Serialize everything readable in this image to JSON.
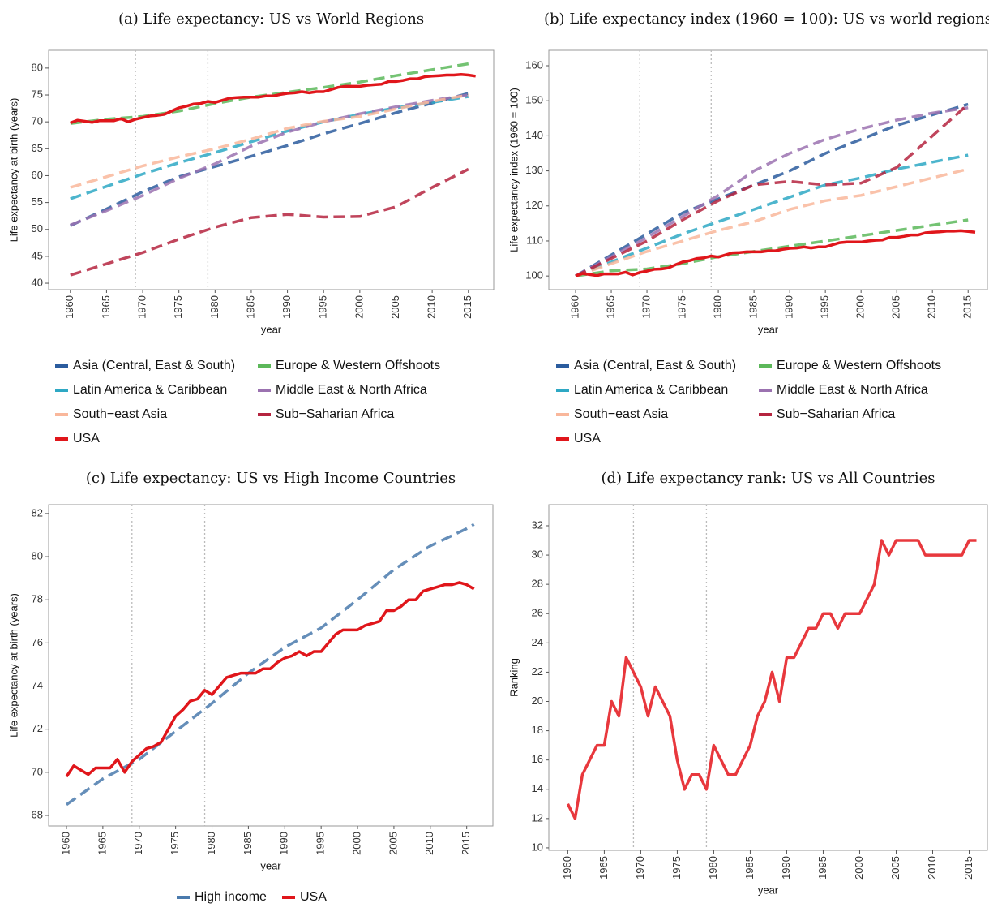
{
  "chart_data": [
    {
      "type": "line",
      "title": "(a) Life expectancy: US vs World Regions",
      "xlabel": "year",
      "ylabel": "Life expectancy at birth (years)",
      "xlim": [
        1957,
        2018.5
      ],
      "xticks": [
        1960,
        1965,
        1970,
        1975,
        1980,
        1985,
        1990,
        1995,
        2000,
        2005,
        2010,
        2015
      ],
      "ylim": [
        38.8,
        83.3
      ],
      "yticks": [
        40,
        45,
        50,
        55,
        60,
        65,
        70,
        75,
        80
      ],
      "vlines": [
        1969,
        1979
      ],
      "legend": "bottom",
      "x": [
        1960,
        1961,
        1962,
        1963,
        1964,
        1965,
        1966,
        1967,
        1968,
        1969,
        1970,
        1971,
        1972,
        1973,
        1974,
        1975,
        1976,
        1977,
        1978,
        1979,
        1980,
        1981,
        1982,
        1983,
        1984,
        1985,
        1986,
        1987,
        1988,
        1989,
        1990,
        1991,
        1992,
        1993,
        1994,
        1995,
        1996,
        1997,
        1998,
        1999,
        2000,
        2001,
        2002,
        2003,
        2004,
        2005,
        2006,
        2007,
        2008,
        2009,
        2010,
        2011,
        2012,
        2013,
        2014,
        2015,
        2016
      ],
      "series": [
        {
          "name": "Asia (Central, East & South)",
          "color": "#2b5c9e",
          "linestyle": "dashed",
          "x": [
            1960,
            1965,
            1970,
            1975,
            1980,
            1985,
            1990,
            1995,
            2000,
            2005,
            2010,
            2015
          ],
          "values": [
            50.7,
            53.8,
            57.0,
            59.8,
            61.7,
            63.6,
            65.6,
            67.8,
            69.7,
            71.7,
            73.5,
            75.3
          ]
        },
        {
          "name": "Europe & Western Offshoots",
          "color": "#5cb85a",
          "linestyle": "dashed",
          "x": [
            1960,
            1965,
            1970,
            1975,
            1980,
            1985,
            1990,
            1995,
            2000,
            2005,
            2010,
            2015
          ],
          "values": [
            69.7,
            70.5,
            71.0,
            72.0,
            73.4,
            74.6,
            75.5,
            76.4,
            77.4,
            78.6,
            79.7,
            80.8
          ]
        },
        {
          "name": "Latin America & Caribbean",
          "color": "#2ea8c4",
          "linestyle": "dashed",
          "x": [
            1960,
            1965,
            1970,
            1975,
            1980,
            1985,
            1990,
            1995,
            2000,
            2005,
            2010,
            2015
          ],
          "values": [
            55.7,
            58.0,
            60.3,
            62.4,
            64.3,
            66.3,
            68.3,
            70.0,
            71.4,
            72.6,
            73.6,
            74.7
          ]
        },
        {
          "name": "Middle East & North Africa",
          "color": "#9b72b0",
          "linestyle": "dashed",
          "x": [
            1960,
            1965,
            1970,
            1975,
            1980,
            1985,
            1990,
            1995,
            2000,
            2005,
            2010,
            2015
          ],
          "values": [
            50.8,
            53.5,
            56.3,
            59.5,
            62.2,
            65.5,
            68.1,
            70.0,
            71.5,
            72.8,
            74.0,
            75.0
          ]
        },
        {
          "name": "South−east Asia",
          "color": "#f9b79b",
          "linestyle": "dashed",
          "x": [
            1960,
            1965,
            1970,
            1975,
            1980,
            1985,
            1990,
            1995,
            2000,
            2005,
            2010,
            2015
          ],
          "values": [
            57.8,
            59.8,
            61.8,
            63.5,
            65.0,
            66.8,
            68.8,
            70.1,
            71.0,
            72.4,
            73.8,
            75.0
          ]
        },
        {
          "name": "Sub−Saharian Africa",
          "color": "#b5243f",
          "linestyle": "dashed",
          "x": [
            1960,
            1965,
            1970,
            1975,
            1980,
            1985,
            1990,
            1995,
            2000,
            2005,
            2010,
            2015
          ],
          "values": [
            41.5,
            43.6,
            45.7,
            48.2,
            50.4,
            52.2,
            52.8,
            52.3,
            52.4,
            54.2,
            57.8,
            61.2
          ]
        },
        {
          "name": "USA",
          "color": "#e0161b",
          "linestyle": "solid",
          "values": [
            69.8,
            70.3,
            70.1,
            69.9,
            70.2,
            70.2,
            70.2,
            70.6,
            70.0,
            70.5,
            70.8,
            71.1,
            71.2,
            71.4,
            72.0,
            72.6,
            72.9,
            73.3,
            73.4,
            73.8,
            73.6,
            74.0,
            74.4,
            74.5,
            74.6,
            74.6,
            74.6,
            74.8,
            74.8,
            75.1,
            75.3,
            75.4,
            75.6,
            75.4,
            75.6,
            75.6,
            76.0,
            76.4,
            76.6,
            76.6,
            76.6,
            76.8,
            76.9,
            77.0,
            77.5,
            77.5,
            77.7,
            78.0,
            78.0,
            78.4,
            78.5,
            78.6,
            78.7,
            78.7,
            78.8,
            78.7,
            78.5
          ]
        }
      ]
    },
    {
      "type": "line",
      "title": "(b) Life expectancy index (1960 = 100): US vs world regions",
      "xlabel": "year",
      "ylabel": "Life expectancy index (1960 = 100)",
      "xlim": [
        1956.25,
        2017.7
      ],
      "xticks": [
        1960,
        1965,
        1970,
        1975,
        1980,
        1985,
        1990,
        1995,
        2000,
        2005,
        2010,
        2015
      ],
      "ylim": [
        96.1,
        164.4
      ],
      "yticks": [
        100,
        110,
        120,
        130,
        140,
        150,
        160
      ],
      "vlines": [
        1969,
        1979
      ],
      "legend": "bottom",
      "x": [
        1960,
        1961,
        1962,
        1963,
        1964,
        1965,
        1966,
        1967,
        1968,
        1969,
        1970,
        1971,
        1972,
        1973,
        1974,
        1975,
        1976,
        1977,
        1978,
        1979,
        1980,
        1981,
        1982,
        1983,
        1984,
        1985,
        1986,
        1987,
        1988,
        1989,
        1990,
        1991,
        1992,
        1993,
        1994,
        1995,
        1996,
        1997,
        1998,
        1999,
        2000,
        2001,
        2002,
        2003,
        2004,
        2005,
        2006,
        2007,
        2008,
        2009,
        2010,
        2011,
        2012,
        2013,
        2014,
        2015,
        2016
      ],
      "series": [
        {
          "name": "Asia (Central, East & South)",
          "color": "#2b5c9e",
          "linestyle": "dashed",
          "x": [
            1960,
            1965,
            1970,
            1975,
            1980,
            1985,
            1990,
            1995,
            2000,
            2005,
            2010,
            2015
          ],
          "values": [
            100,
            106,
            112,
            118,
            122,
            126,
            130,
            135,
            139,
            143,
            146,
            149
          ]
        },
        {
          "name": "Europe & Western Offshoots",
          "color": "#5cb85a",
          "linestyle": "dashed",
          "x": [
            1960,
            1965,
            1970,
            1975,
            1980,
            1985,
            1990,
            1995,
            2000,
            2005,
            2010,
            2015
          ],
          "values": [
            100,
            101.5,
            102,
            103.5,
            105.5,
            107,
            108.5,
            110,
            111.5,
            113,
            114.5,
            116
          ]
        },
        {
          "name": "Latin America & Caribbean",
          "color": "#2ea8c4",
          "linestyle": "dashed",
          "x": [
            1960,
            1965,
            1970,
            1975,
            1980,
            1985,
            1990,
            1995,
            2000,
            2005,
            2010,
            2015
          ],
          "values": [
            100,
            104,
            108,
            112,
            115.5,
            119,
            122.5,
            126,
            128,
            130.5,
            132.5,
            134.5
          ]
        },
        {
          "name": "Middle East & North Africa",
          "color": "#9b72b0",
          "linestyle": "dashed",
          "x": [
            1960,
            1965,
            1970,
            1975,
            1980,
            1985,
            1990,
            1995,
            2000,
            2005,
            2010,
            2015
          ],
          "values": [
            100,
            105.5,
            111,
            117,
            123,
            130,
            135,
            139,
            142,
            144.5,
            146.5,
            148
          ]
        },
        {
          "name": "South−east Asia",
          "color": "#f9b79b",
          "linestyle": "dashed",
          "x": [
            1960,
            1965,
            1970,
            1975,
            1980,
            1985,
            1990,
            1995,
            2000,
            2005,
            2010,
            2015
          ],
          "values": [
            100,
            103.5,
            107,
            110,
            113,
            115.5,
            119,
            121.5,
            123,
            125.5,
            128,
            130.5
          ]
        },
        {
          "name": "Sub−Saharian Africa",
          "color": "#b5243f",
          "linestyle": "dashed",
          "x": [
            1960,
            1965,
            1970,
            1975,
            1980,
            1985,
            1990,
            1995,
            2000,
            2005,
            2010,
            2015
          ],
          "values": [
            100,
            105,
            110,
            116,
            121.5,
            126,
            127,
            126,
            126.5,
            131,
            140,
            149
          ]
        },
        {
          "name": "USA",
          "color": "#e0161b",
          "linestyle": "solid",
          "values": [
            100,
            100.7,
            100.4,
            100.1,
            100.6,
            100.6,
            100.6,
            101.1,
            100.3,
            101.0,
            101.4,
            101.9,
            102.0,
            102.3,
            103.2,
            104.0,
            104.4,
            105.0,
            105.2,
            105.7,
            105.4,
            106.0,
            106.6,
            106.7,
            106.9,
            106.9,
            106.9,
            107.2,
            107.2,
            107.6,
            107.9,
            108.0,
            108.3,
            108.0,
            108.3,
            108.3,
            108.9,
            109.5,
            109.7,
            109.7,
            109.7,
            110.0,
            110.2,
            110.3,
            111.0,
            111.0,
            111.3,
            111.7,
            111.7,
            112.3,
            112.5,
            112.6,
            112.8,
            112.8,
            112.9,
            112.7,
            112.5
          ]
        }
      ]
    },
    {
      "type": "line",
      "title": "(c) Life expectancy: US vs High Income Countries",
      "xlabel": "year",
      "ylabel": "Life expectancy at birth (years)",
      "xlim": [
        1957.55,
        2018.6
      ],
      "xticks": [
        1960,
        1965,
        1970,
        1975,
        1980,
        1985,
        1990,
        1995,
        2000,
        2005,
        2010,
        2015
      ],
      "ylim": [
        67.51,
        82.41
      ],
      "yticks": [
        68,
        70,
        72,
        74,
        76,
        78,
        80,
        82
      ],
      "vlines": [
        1969,
        1979
      ],
      "legend": "bottom",
      "x": [
        1960,
        1961,
        1962,
        1963,
        1964,
        1965,
        1966,
        1967,
        1968,
        1969,
        1970,
        1971,
        1972,
        1973,
        1974,
        1975,
        1976,
        1977,
        1978,
        1979,
        1980,
        1981,
        1982,
        1983,
        1984,
        1985,
        1986,
        1987,
        1988,
        1989,
        1990,
        1991,
        1992,
        1993,
        1994,
        1995,
        1996,
        1997,
        1998,
        1999,
        2000,
        2001,
        2002,
        2003,
        2004,
        2005,
        2006,
        2007,
        2008,
        2009,
        2010,
        2011,
        2012,
        2013,
        2014,
        2015,
        2016
      ],
      "series": [
        {
          "name": "High income",
          "color": "#4a7aad",
          "linestyle": "dashed",
          "x": [
            1960,
            1965,
            1970,
            1975,
            1980,
            1985,
            1990,
            1995,
            2000,
            2005,
            2010,
            2015,
            2016
          ],
          "values": [
            68.5,
            69.7,
            70.6,
            71.9,
            73.2,
            74.6,
            75.8,
            76.7,
            78.0,
            79.4,
            80.5,
            81.3,
            81.5
          ]
        },
        {
          "name": "USA",
          "color": "#e0161b",
          "linestyle": "solid",
          "values": [
            69.8,
            70.3,
            70.1,
            69.9,
            70.2,
            70.2,
            70.2,
            70.6,
            70.0,
            70.5,
            70.8,
            71.1,
            71.2,
            71.4,
            72.0,
            72.6,
            72.9,
            73.3,
            73.4,
            73.8,
            73.6,
            74.0,
            74.4,
            74.5,
            74.6,
            74.6,
            74.6,
            74.8,
            74.8,
            75.1,
            75.3,
            75.4,
            75.6,
            75.4,
            75.6,
            75.6,
            76.0,
            76.4,
            76.6,
            76.6,
            76.6,
            76.8,
            76.9,
            77.0,
            77.5,
            77.5,
            77.7,
            78.0,
            78.0,
            78.4,
            78.5,
            78.6,
            78.7,
            78.7,
            78.8,
            78.7,
            78.5
          ]
        }
      ]
    },
    {
      "type": "line",
      "title": "(d) Life expectancy rank: US vs All Countries",
      "xlabel": "year",
      "ylabel": "Ranking",
      "xlim": [
        1957.4,
        2017.5
      ],
      "xticks": [
        1960,
        1965,
        1970,
        1975,
        1980,
        1985,
        1990,
        1995,
        2000,
        2005,
        2010,
        2015
      ],
      "ylim": [
        9.83,
        33.44
      ],
      "yticks": [
        10,
        12,
        14,
        16,
        18,
        20,
        22,
        24,
        26,
        28,
        30,
        32
      ],
      "vlines": [
        1969,
        1979
      ],
      "x": [
        1960,
        1961,
        1962,
        1963,
        1964,
        1965,
        1966,
        1967,
        1968,
        1969,
        1970,
        1971,
        1972,
        1973,
        1974,
        1975,
        1976,
        1977,
        1978,
        1979,
        1980,
        1981,
        1982,
        1983,
        1984,
        1985,
        1986,
        1987,
        1988,
        1989,
        1990,
        1991,
        1992,
        1993,
        1994,
        1995,
        1996,
        1997,
        1998,
        1999,
        2000,
        2001,
        2002,
        2003,
        2004,
        2005,
        2006,
        2007,
        2008,
        2009,
        2010,
        2011,
        2012,
        2013,
        2014,
        2015,
        2016
      ],
      "series": [
        {
          "color": "#e8383d",
          "linestyle": "solid",
          "values": [
            13,
            12,
            15,
            16,
            17,
            17,
            20,
            19,
            23,
            22,
            21,
            19,
            21,
            20,
            19,
            16,
            14,
            15,
            15,
            14,
            17,
            16,
            15,
            15,
            16,
            17,
            19,
            20,
            22,
            20,
            23,
            23,
            24,
            25,
            25,
            26,
            26,
            25,
            26,
            26,
            26,
            27,
            28,
            31,
            30,
            31,
            31,
            31,
            31,
            30,
            30,
            30,
            30,
            30,
            30,
            31,
            31
          ]
        }
      ]
    }
  ]
}
